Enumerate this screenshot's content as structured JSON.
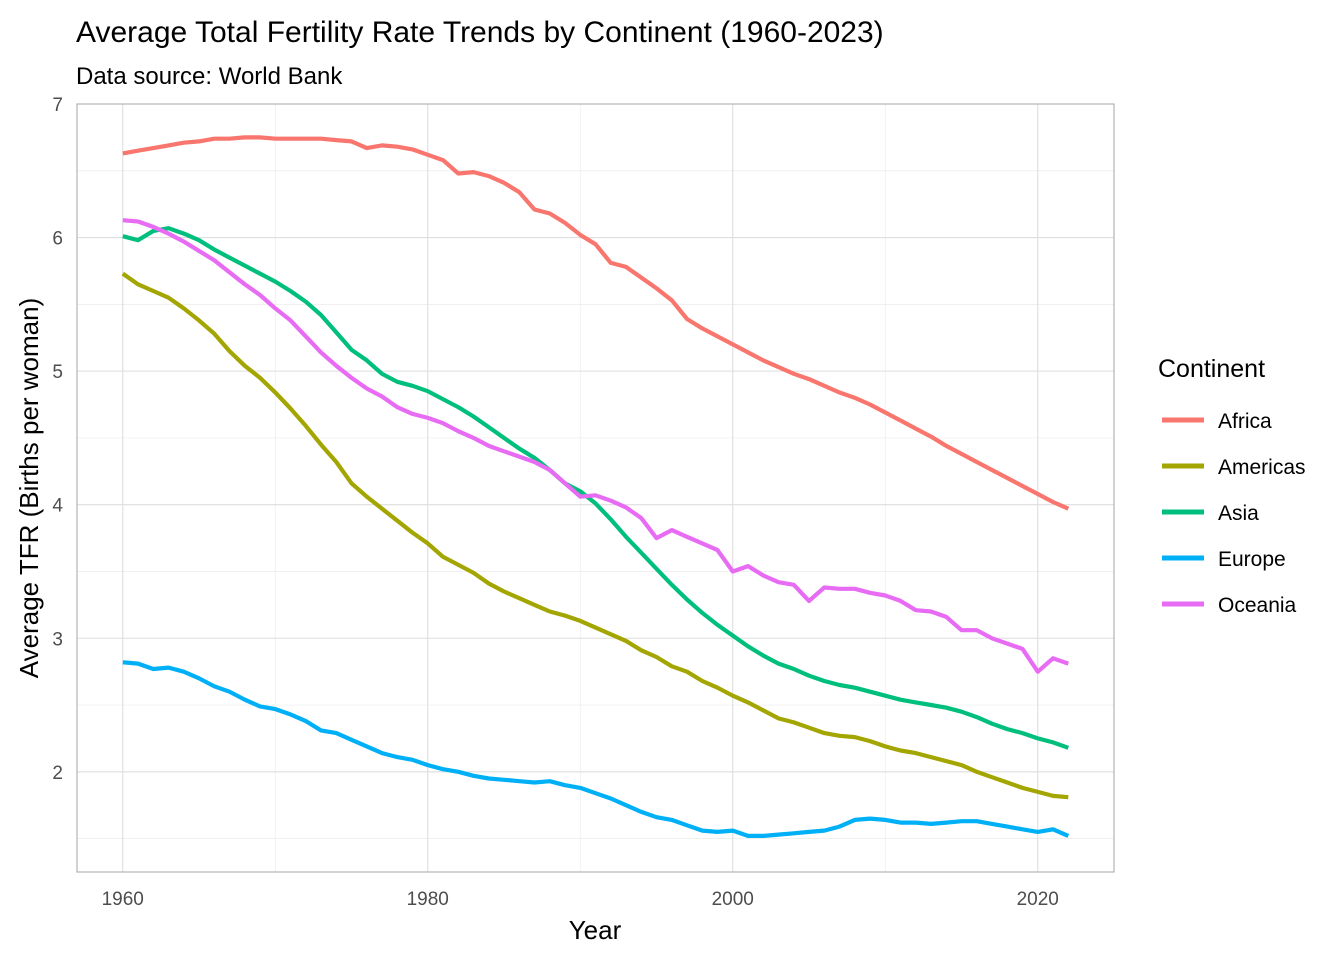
{
  "chart_data": {
    "type": "line",
    "title": "Average Total Fertility Rate Trends by Continent (1960-2023)",
    "subtitle": "Data source: World Bank",
    "xlabel": "Year",
    "ylabel": "Average TFR (Births per woman)",
    "xlim": [
      1957,
      2025
    ],
    "ylim": [
      1.25,
      7
    ],
    "x_ticks": [
      1960,
      1980,
      2000,
      2020
    ],
    "y_ticks": [
      2,
      3,
      4,
      5,
      6,
      7
    ],
    "grid": true,
    "legend": {
      "title": "Continent",
      "position": "right"
    },
    "x": [
      1960,
      1961,
      1962,
      1963,
      1964,
      1965,
      1966,
      1967,
      1968,
      1969,
      1970,
      1971,
      1972,
      1973,
      1974,
      1975,
      1976,
      1977,
      1978,
      1979,
      1980,
      1981,
      1982,
      1983,
      1984,
      1985,
      1986,
      1987,
      1988,
      1989,
      1990,
      1991,
      1992,
      1993,
      1994,
      1995,
      1996,
      1997,
      1998,
      1999,
      2000,
      2001,
      2002,
      2003,
      2004,
      2005,
      2006,
      2007,
      2008,
      2009,
      2010,
      2011,
      2012,
      2013,
      2014,
      2015,
      2016,
      2017,
      2018,
      2019,
      2020,
      2021,
      2022
    ],
    "series": [
      {
        "name": "Africa",
        "color": "#F8766D",
        "values": [
          6.63,
          6.65,
          6.67,
          6.69,
          6.71,
          6.72,
          6.74,
          6.74,
          6.75,
          6.75,
          6.74,
          6.74,
          6.74,
          6.74,
          6.73,
          6.72,
          6.67,
          6.69,
          6.68,
          6.66,
          6.62,
          6.58,
          6.48,
          6.49,
          6.46,
          6.41,
          6.34,
          6.21,
          6.18,
          6.11,
          6.02,
          5.95,
          5.81,
          5.78,
          5.7,
          5.62,
          5.53,
          5.39,
          5.32,
          5.26,
          5.2,
          5.14,
          5.08,
          5.03,
          4.98,
          4.94,
          4.89,
          4.84,
          4.8,
          4.75,
          4.69,
          4.63,
          4.57,
          4.51,
          4.44,
          4.38,
          4.32,
          4.26,
          4.2,
          4.14,
          4.08,
          4.02,
          3.97
        ]
      },
      {
        "name": "Americas",
        "color": "#A3A500",
        "values": [
          5.73,
          5.65,
          5.6,
          5.55,
          5.47,
          5.38,
          5.28,
          5.15,
          5.04,
          4.95,
          4.84,
          4.72,
          4.59,
          4.45,
          4.32,
          4.16,
          4.06,
          3.97,
          3.88,
          3.79,
          3.71,
          3.61,
          3.55,
          3.49,
          3.41,
          3.35,
          3.3,
          3.25,
          3.2,
          3.17,
          3.13,
          3.08,
          3.03,
          2.98,
          2.91,
          2.86,
          2.79,
          2.75,
          2.68,
          2.63,
          2.57,
          2.52,
          2.46,
          2.4,
          2.37,
          2.33,
          2.29,
          2.27,
          2.26,
          2.23,
          2.19,
          2.16,
          2.14,
          2.11,
          2.08,
          2.05,
          2.0,
          1.96,
          1.92,
          1.88,
          1.85,
          1.82,
          1.81
        ]
      },
      {
        "name": "Asia",
        "color": "#00BF7D",
        "values": [
          6.01,
          5.98,
          6.05,
          6.07,
          6.03,
          5.98,
          5.91,
          5.85,
          5.79,
          5.73,
          5.67,
          5.6,
          5.52,
          5.42,
          5.29,
          5.16,
          5.08,
          4.98,
          4.92,
          4.89,
          4.85,
          4.79,
          4.73,
          4.66,
          4.58,
          4.5,
          4.42,
          4.35,
          4.26,
          4.16,
          4.1,
          4.01,
          3.89,
          3.76,
          3.64,
          3.52,
          3.4,
          3.29,
          3.19,
          3.1,
          3.02,
          2.94,
          2.87,
          2.81,
          2.77,
          2.72,
          2.68,
          2.65,
          2.63,
          2.6,
          2.57,
          2.54,
          2.52,
          2.5,
          2.48,
          2.45,
          2.41,
          2.36,
          2.32,
          2.29,
          2.25,
          2.22,
          2.18
        ]
      },
      {
        "name": "Europe",
        "color": "#00B0F6",
        "values": [
          2.82,
          2.81,
          2.77,
          2.78,
          2.75,
          2.7,
          2.64,
          2.6,
          2.54,
          2.49,
          2.47,
          2.43,
          2.38,
          2.31,
          2.29,
          2.24,
          2.19,
          2.14,
          2.11,
          2.09,
          2.05,
          2.02,
          2.0,
          1.97,
          1.95,
          1.94,
          1.93,
          1.92,
          1.93,
          1.9,
          1.88,
          1.84,
          1.8,
          1.75,
          1.7,
          1.66,
          1.64,
          1.6,
          1.56,
          1.55,
          1.56,
          1.52,
          1.52,
          1.53,
          1.54,
          1.55,
          1.56,
          1.59,
          1.64,
          1.65,
          1.64,
          1.62,
          1.62,
          1.61,
          1.62,
          1.63,
          1.63,
          1.61,
          1.59,
          1.57,
          1.55,
          1.57,
          1.52
        ]
      },
      {
        "name": "Oceania",
        "color": "#E76BF3",
        "values": [
          6.13,
          6.12,
          6.08,
          6.03,
          5.97,
          5.9,
          5.83,
          5.74,
          5.65,
          5.57,
          5.47,
          5.38,
          5.26,
          5.14,
          5.04,
          4.95,
          4.87,
          4.81,
          4.73,
          4.68,
          4.65,
          4.61,
          4.55,
          4.5,
          4.44,
          4.4,
          4.36,
          4.32,
          4.26,
          4.16,
          4.06,
          4.07,
          4.03,
          3.98,
          3.9,
          3.75,
          3.81,
          3.76,
          3.71,
          3.66,
          3.5,
          3.54,
          3.47,
          3.42,
          3.4,
          3.28,
          3.38,
          3.37,
          3.37,
          3.34,
          3.32,
          3.28,
          3.21,
          3.2,
          3.16,
          3.06,
          3.06,
          3.0,
          2.96,
          2.92,
          2.75,
          2.85,
          2.81
        ]
      }
    ]
  }
}
